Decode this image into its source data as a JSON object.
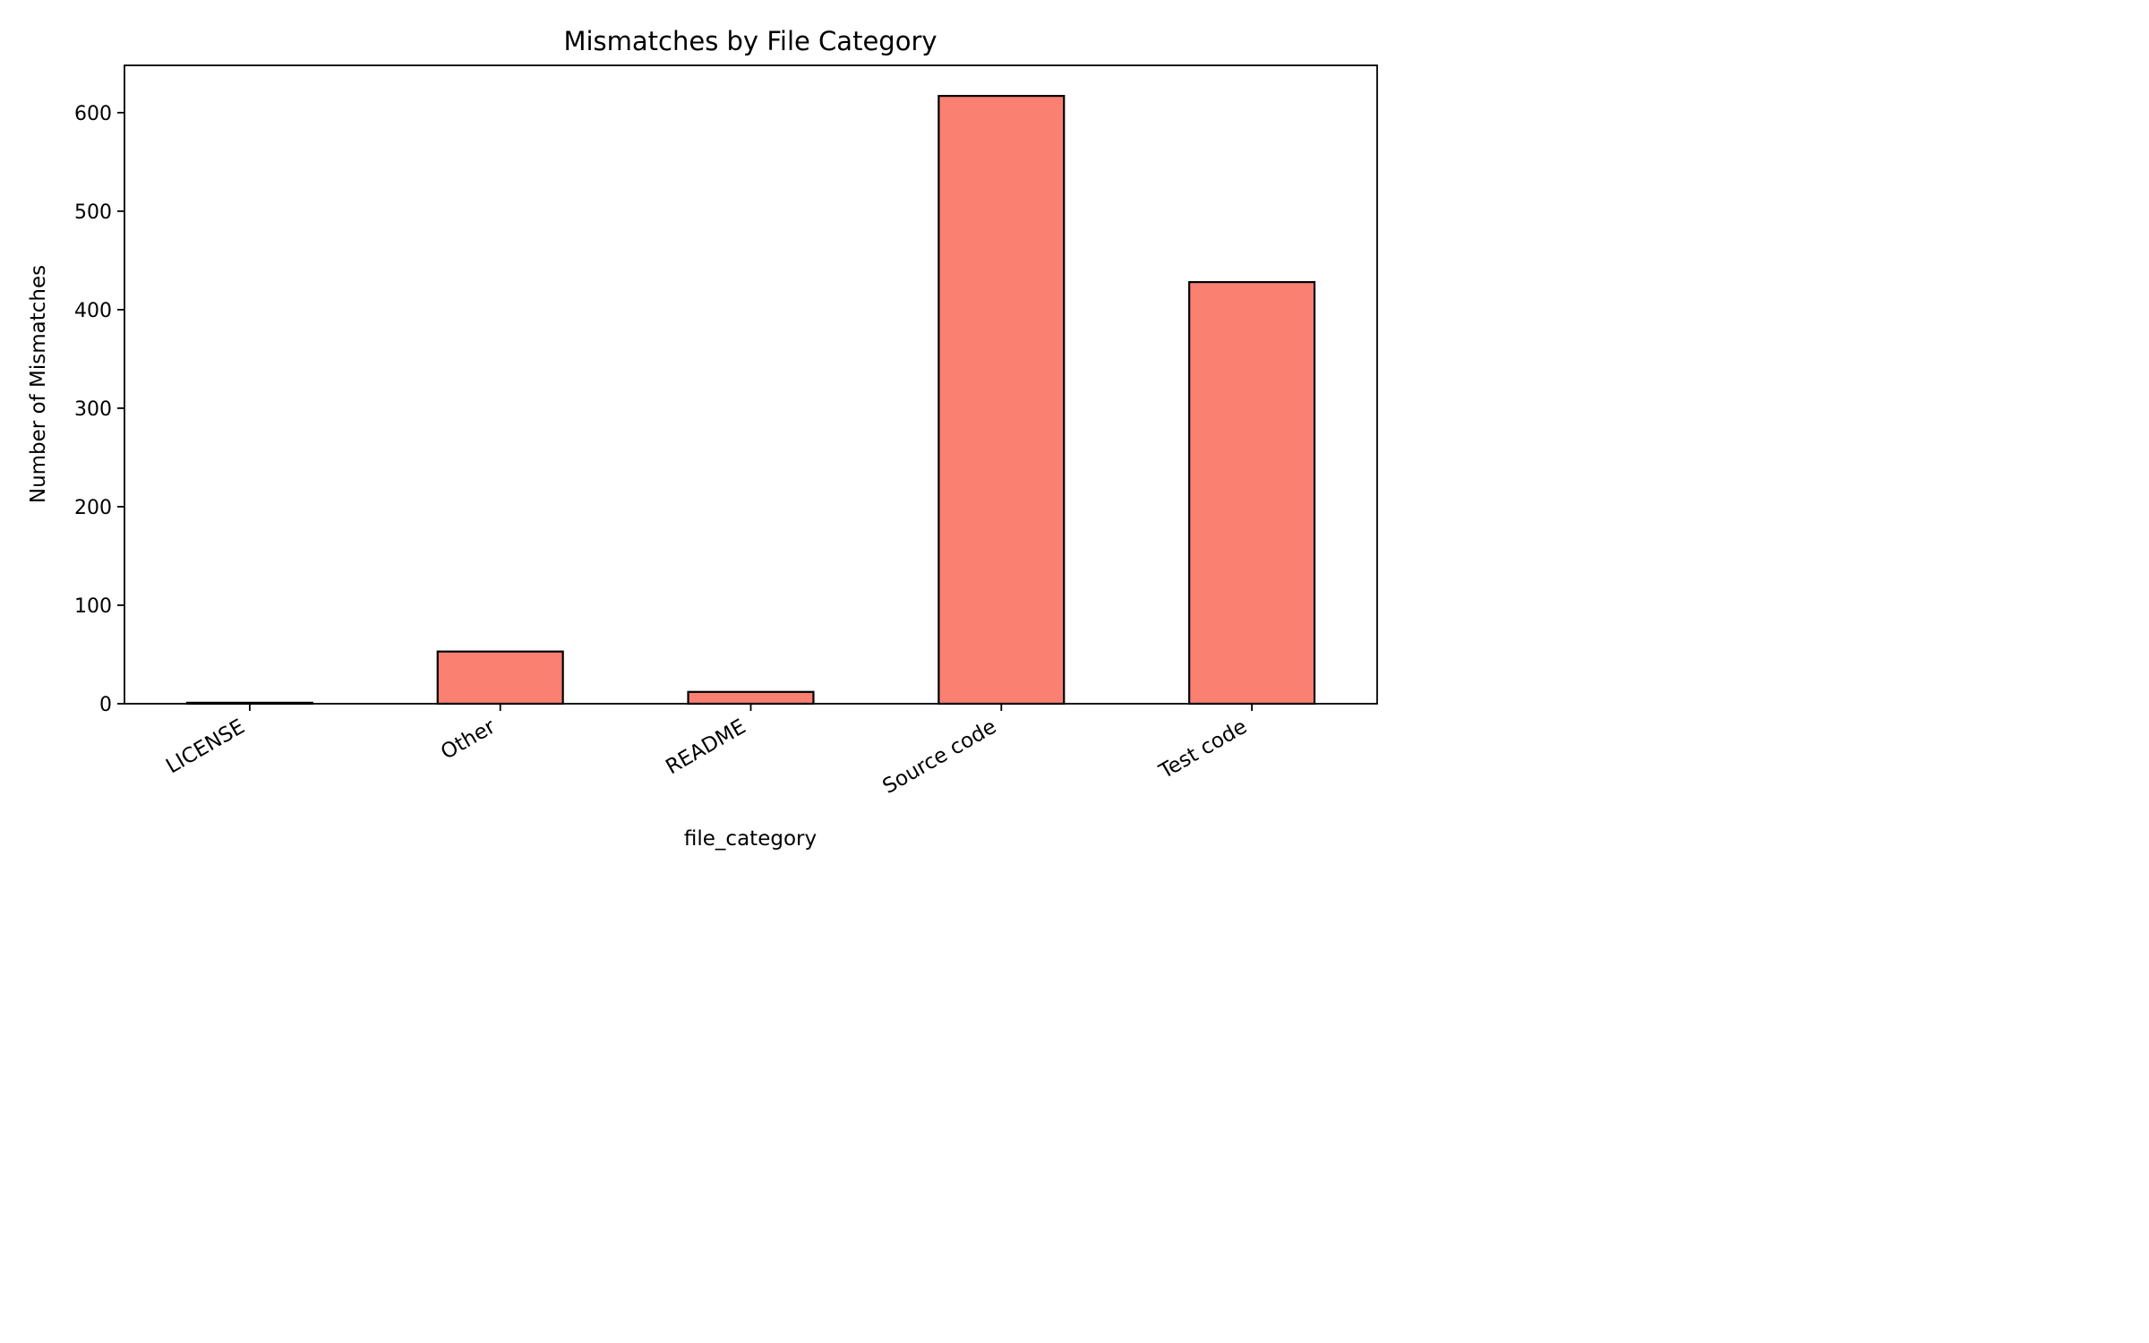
{
  "chart_data": {
    "type": "bar",
    "title": "Mismatches by File Category",
    "xlabel": "file_category",
    "ylabel": "Number of Mismatches",
    "categories": [
      "LICENSE",
      "Other",
      "README",
      "Source code",
      "Test code"
    ],
    "values": [
      1,
      53,
      12,
      617,
      428
    ],
    "ylim": [
      0,
      648
    ],
    "yticks": [
      0,
      100,
      200,
      300,
      400,
      500,
      600
    ],
    "grid": false,
    "legend": "none",
    "bar_color": "#fa8072",
    "edge_color": "#000000"
  }
}
